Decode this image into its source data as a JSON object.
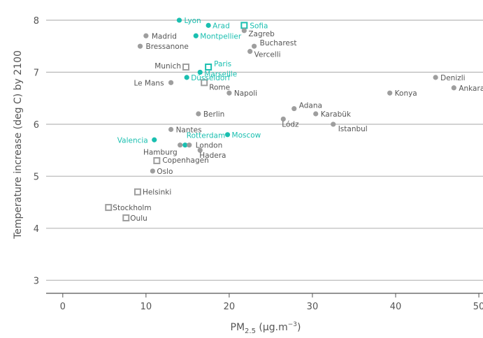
{
  "chart_data": {
    "type": "scatter",
    "xlabel": "PM",
    "xlabel_sub": "2.5",
    "xlabel_unit": " (µg.m",
    "xlabel_unit_sup": "−3",
    "xlabel_unit_end": ")",
    "ylabel": "Temperature increase (deg C) by 2100",
    "xlim": [
      -2,
      50.5
    ],
    "ylim": [
      2.75,
      8.12
    ],
    "x_ticks": [
      "0",
      "10",
      "20",
      "30",
      "40",
      "50"
    ],
    "y_ticks": [
      "3",
      "4",
      "5",
      "6",
      "7",
      "8"
    ],
    "grid": "horizontal",
    "colors": {
      "highlight": "#1ABFB0",
      "normal": "#9E9E9E",
      "grid": "#BDBDBD",
      "axis": "#555555"
    },
    "points": [
      {
        "label": "Lyon",
        "x": 14,
        "y": 8.0,
        "marker": "dot",
        "highlight": true
      },
      {
        "label": "Arad",
        "x": 17.5,
        "y": 7.9,
        "marker": "dot",
        "highlight": true
      },
      {
        "label": "Sofia",
        "x": 21.8,
        "y": 7.9,
        "marker": "square",
        "highlight": true
      },
      {
        "label": "Zagreb",
        "x": 21.8,
        "y": 7.8,
        "marker": "dot",
        "highlight": false
      },
      {
        "label": "Madrid",
        "x": 10,
        "y": 7.7,
        "marker": "dot",
        "highlight": false
      },
      {
        "label": "Montpellier",
        "x": 16,
        "y": 7.7,
        "marker": "dot",
        "highlight": true
      },
      {
        "label": "Bressanone",
        "x": 9.3,
        "y": 7.5,
        "marker": "dot",
        "highlight": false
      },
      {
        "label": "Bucharest",
        "x": 23,
        "y": 7.5,
        "marker": "dot",
        "highlight": false
      },
      {
        "label": "Vercelli",
        "x": 22.5,
        "y": 7.4,
        "marker": "dot",
        "highlight": false
      },
      {
        "label": "Munich",
        "x": 14.8,
        "y": 7.1,
        "marker": "square",
        "highlight": false
      },
      {
        "label": "Paris",
        "x": 17.5,
        "y": 7.1,
        "marker": "square",
        "highlight": true
      },
      {
        "label": "Marseille",
        "x": 16.5,
        "y": 7.0,
        "marker": "dot",
        "highlight": true
      },
      {
        "label": "Düsseldorf",
        "x": 14.9,
        "y": 6.9,
        "marker": "dot",
        "highlight": true
      },
      {
        "label": "Le Mans",
        "x": 13,
        "y": 6.8,
        "marker": "dot",
        "highlight": false
      },
      {
        "label": "Rome",
        "x": 17,
        "y": 6.8,
        "marker": "square",
        "highlight": false
      },
      {
        "label": "Napoli",
        "x": 20,
        "y": 6.6,
        "marker": "dot",
        "highlight": false
      },
      {
        "label": "Denizli",
        "x": 44.8,
        "y": 6.9,
        "marker": "dot",
        "highlight": false
      },
      {
        "label": "Ankara",
        "x": 47,
        "y": 6.7,
        "marker": "dot",
        "highlight": false
      },
      {
        "label": "Konya",
        "x": 39.3,
        "y": 6.6,
        "marker": "dot",
        "highlight": false
      },
      {
        "label": "Adana",
        "x": 27.8,
        "y": 6.3,
        "marker": "dot",
        "highlight": false
      },
      {
        "label": "Karabük",
        "x": 30.4,
        "y": 6.2,
        "marker": "dot",
        "highlight": false
      },
      {
        "label": "Berlin",
        "x": 16.3,
        "y": 6.2,
        "marker": "dot",
        "highlight": false
      },
      {
        "label": "Lódz",
        "x": 26.5,
        "y": 6.1,
        "marker": "dot",
        "highlight": false
      },
      {
        "label": "Istanbul",
        "x": 32.5,
        "y": 6.0,
        "marker": "dot",
        "highlight": false
      },
      {
        "label": "Nantes",
        "x": 13,
        "y": 5.9,
        "marker": "dot",
        "highlight": false
      },
      {
        "label": "Moscow",
        "x": 19.8,
        "y": 5.8,
        "marker": "dot",
        "highlight": true
      },
      {
        "label": "Valencia",
        "x": 11,
        "y": 5.7,
        "marker": "dot",
        "highlight": true
      },
      {
        "label": "Rotterdam",
        "x": 14.7,
        "y": 5.6,
        "marker": "dot",
        "highlight": true
      },
      {
        "label": "Hamburg",
        "x": 14.1,
        "y": 5.6,
        "marker": "dot",
        "highlight": false
      },
      {
        "label": "London",
        "x": 15.2,
        "y": 5.6,
        "marker": "dot",
        "highlight": false
      },
      {
        "label": "Hadera",
        "x": 16.5,
        "y": 5.5,
        "marker": "dot",
        "highlight": false
      },
      {
        "label": "Copenhagen",
        "x": 11.3,
        "y": 5.3,
        "marker": "square",
        "highlight": false
      },
      {
        "label": "Oslo",
        "x": 10.8,
        "y": 5.1,
        "marker": "dot",
        "highlight": false
      },
      {
        "label": "Helsinki",
        "x": 9,
        "y": 4.7,
        "marker": "square",
        "highlight": false
      },
      {
        "label": "Stockholm",
        "x": 5.5,
        "y": 4.4,
        "marker": "square",
        "highlight": false
      },
      {
        "label": "Oulu",
        "x": 7.6,
        "y": 4.2,
        "marker": "square",
        "highlight": false
      }
    ]
  }
}
